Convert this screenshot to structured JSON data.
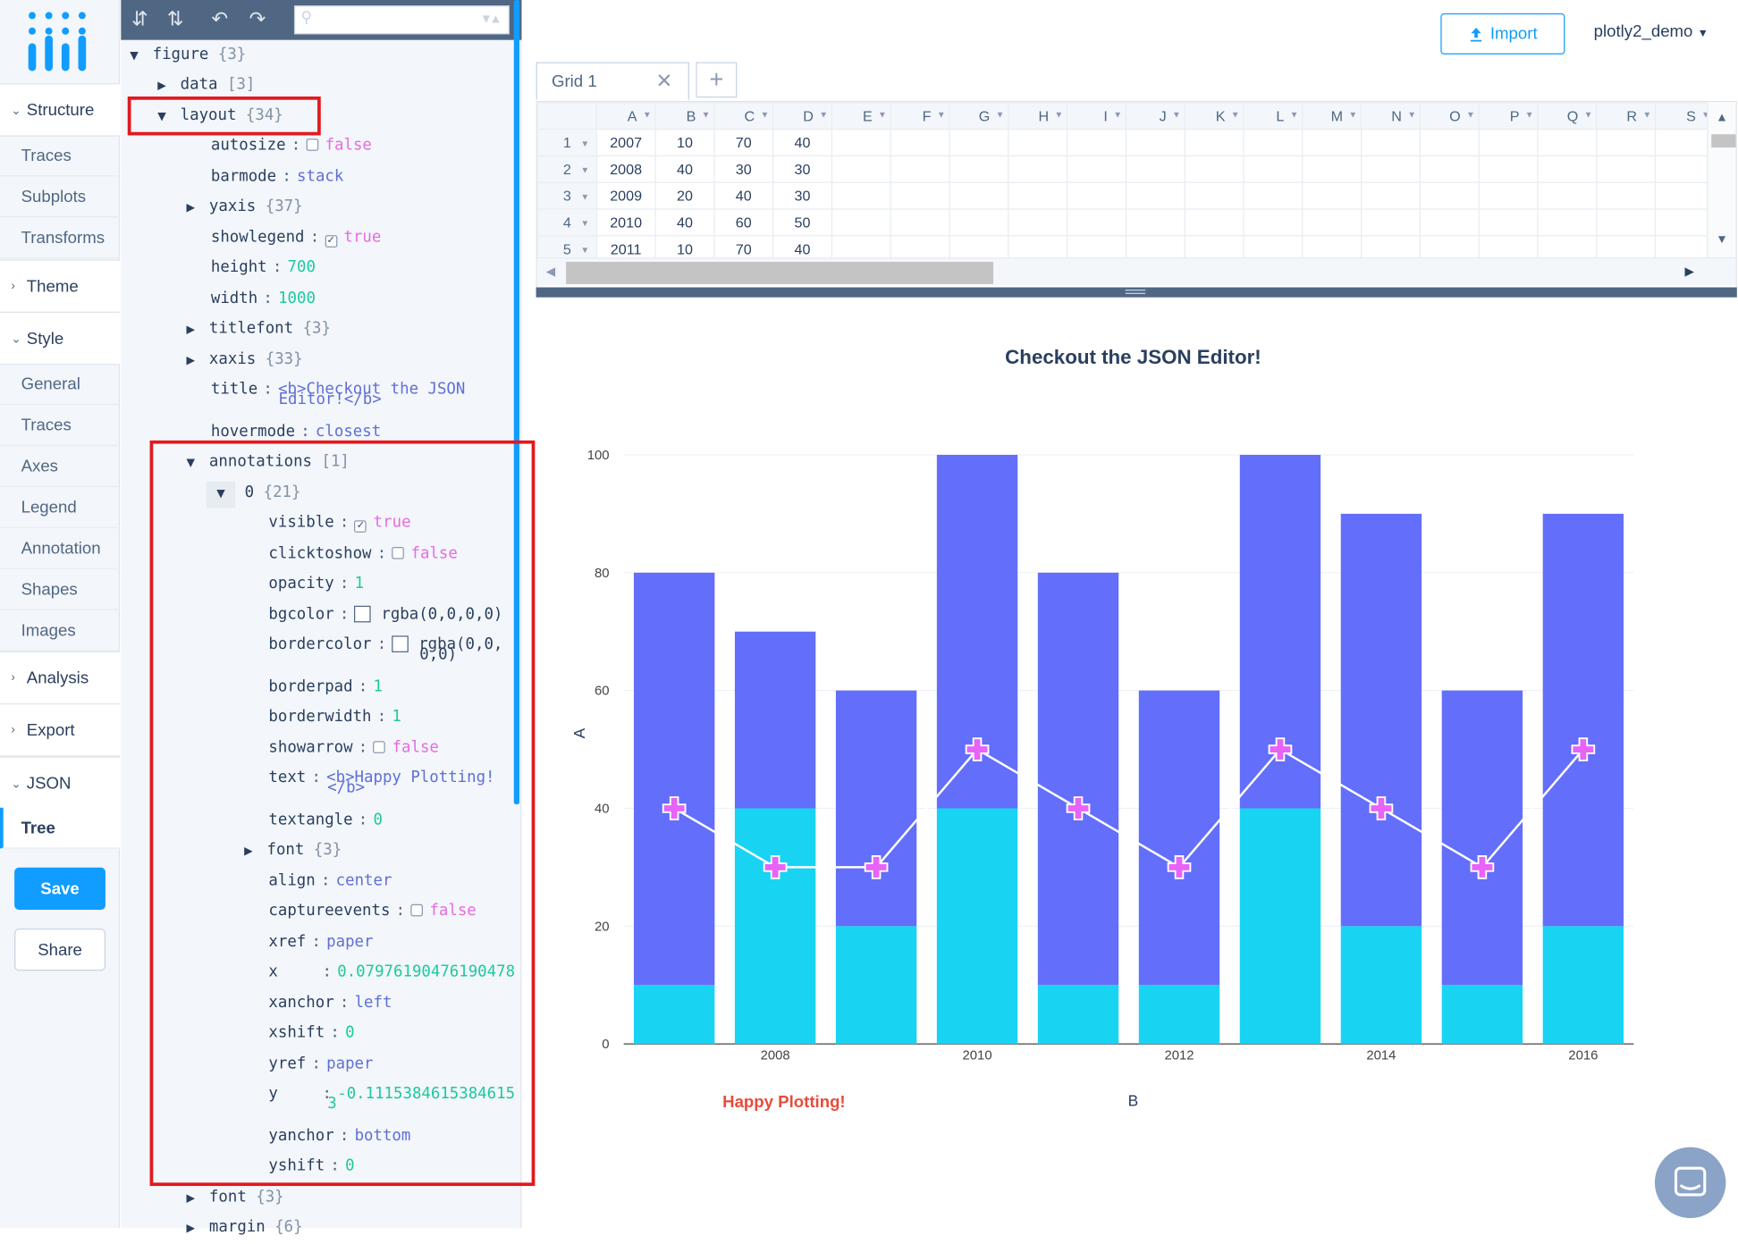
{
  "nav": {
    "groups": [
      {
        "label": "Structure",
        "open": true,
        "items": [
          "Traces",
          "Subplots",
          "Transforms"
        ]
      },
      {
        "label": "Theme",
        "open": false,
        "items": []
      },
      {
        "label": "Style",
        "open": true,
        "items": [
          "General",
          "Traces",
          "Axes",
          "Legend",
          "Annotation",
          "Shapes",
          "Images"
        ]
      },
      {
        "label": "Analysis",
        "open": false,
        "items": []
      },
      {
        "label": "Export",
        "open": false,
        "items": []
      },
      {
        "label": "JSON",
        "open": true,
        "items": [
          "Tree"
        ]
      }
    ],
    "labels": {
      "structure": "Structure",
      "traces1": "Traces",
      "subplots": "Subplots",
      "transforms": "Transforms",
      "theme": "Theme",
      "style": "Style",
      "general": "General",
      "traces2": "Traces",
      "axes": "Axes",
      "legend": "Legend",
      "annotation": "Annotation",
      "shapes": "Shapes",
      "images": "Images",
      "analysis": "Analysis",
      "export": "Export",
      "json": "JSON",
      "tree": "Tree"
    },
    "save": "Save",
    "share": "Share",
    "active_item": "Tree"
  },
  "json_tree": {
    "figure": {
      "key": "figure",
      "count": "{3}"
    },
    "data": {
      "key": "data",
      "count": "[3]"
    },
    "layout": {
      "key": "layout",
      "count": "{34}"
    },
    "autosize": {
      "key": "autosize",
      "value": "false"
    },
    "barmode": {
      "key": "barmode",
      "value": "stack"
    },
    "yaxis": {
      "key": "yaxis",
      "count": "{37}"
    },
    "showlegend": {
      "key": "showlegend",
      "value": "true"
    },
    "height": {
      "key": "height",
      "value": "700"
    },
    "width": {
      "key": "width",
      "value": "1000"
    },
    "titlefont": {
      "key": "titlefont",
      "count": "{3}"
    },
    "xaxis": {
      "key": "xaxis",
      "count": "{33}"
    },
    "title": {
      "key": "title",
      "value1": "<b>Checkout the JSON",
      "value2": "Editor!</b>"
    },
    "hovermode": {
      "key": "hovermode",
      "value": "closest"
    },
    "annotations": {
      "key": "annotations",
      "count": "[1]"
    },
    "ann0": {
      "key": "0",
      "count": "{21}"
    },
    "visible": {
      "key": "visible",
      "value": "true"
    },
    "clicktoshow": {
      "key": "clicktoshow",
      "value": "false"
    },
    "opacity": {
      "key": "opacity",
      "value": "1"
    },
    "bgcolor": {
      "key": "bgcolor",
      "value": "rgba(0,0,0,0)"
    },
    "bordercolor": {
      "key": "bordercolor",
      "value1": "rgba(0,0,",
      "value2": "0,0)"
    },
    "borderpad": {
      "key": "borderpad",
      "value": "1"
    },
    "borderwidth": {
      "key": "borderwidth",
      "value": "1"
    },
    "showarrow": {
      "key": "showarrow",
      "value": "false"
    },
    "text": {
      "key": "text",
      "value1": "<b>Happy Plotting!",
      "value2": "</b>"
    },
    "textangle": {
      "key": "textangle",
      "value": "0"
    },
    "font": {
      "key": "font",
      "count": "{3}"
    },
    "align": {
      "key": "align",
      "value": "center"
    },
    "captureevents": {
      "key": "captureevents",
      "value": "false"
    },
    "xref": {
      "key": "xref",
      "value": "paper"
    },
    "x": {
      "key": "x",
      "value": "0.07976190476190478"
    },
    "xanchor": {
      "key": "xanchor",
      "value": "left"
    },
    "xshift": {
      "key": "xshift",
      "value": "0"
    },
    "yref": {
      "key": "yref",
      "value": "paper"
    },
    "y": {
      "key": "y",
      "value1": "-0.1115384615384615",
      "value2": "3"
    },
    "yanchor": {
      "key": "yanchor",
      "value": "bottom"
    },
    "yshift": {
      "key": "yshift",
      "value": "0"
    },
    "layout_font": {
      "key": "font",
      "count": "{3}"
    },
    "margin": {
      "key": "margin",
      "count": "{6}"
    }
  },
  "topbar": {
    "import_label": "Import",
    "user": "plotly2_demo"
  },
  "grid": {
    "tab_label": "Grid 1",
    "columns": [
      "A",
      "B",
      "C",
      "D",
      "E",
      "F",
      "G",
      "H",
      "I",
      "J",
      "K",
      "L",
      "M",
      "N",
      "O",
      "P",
      "Q",
      "R",
      "S"
    ],
    "rows": [
      {
        "n": "1",
        "cells": [
          "2007",
          "10",
          "70",
          "40"
        ]
      },
      {
        "n": "2",
        "cells": [
          "2008",
          "40",
          "30",
          "30"
        ]
      },
      {
        "n": "3",
        "cells": [
          "2009",
          "20",
          "40",
          "30"
        ]
      },
      {
        "n": "4",
        "cells": [
          "2010",
          "40",
          "60",
          "50"
        ]
      },
      {
        "n": "5",
        "cells": [
          "2011",
          "10",
          "70",
          "40"
        ]
      }
    ]
  },
  "chart_data": {
    "type": "bar",
    "barmode": "stack",
    "title": "Checkout the JSON Editor!",
    "xlabel": "B",
    "ylabel": "A",
    "x": [
      2007,
      2008,
      2009,
      2010,
      2011,
      2012,
      2013,
      2014,
      2015,
      2016
    ],
    "xticks": [
      "2008",
      "2010",
      "2012",
      "2014",
      "2016"
    ],
    "yticks": [
      "0",
      "20",
      "40",
      "60",
      "80",
      "100"
    ],
    "ylim": [
      0,
      100
    ],
    "series": [
      {
        "type": "bar",
        "values": [
          10,
          40,
          20,
          40,
          10,
          10,
          40,
          20,
          10,
          20
        ],
        "color": "#19d3f3"
      },
      {
        "type": "bar",
        "values": [
          70,
          30,
          40,
          60,
          70,
          50,
          60,
          70,
          50,
          70
        ],
        "color": "#636efa"
      },
      {
        "type": "line",
        "marker": "cross",
        "values": [
          40,
          30,
          30,
          50,
          40,
          30,
          50,
          40,
          30,
          50
        ],
        "color": "#e763fa"
      }
    ],
    "annotation": {
      "text": "Happy Plotting!",
      "color": "#e74c3c"
    }
  }
}
